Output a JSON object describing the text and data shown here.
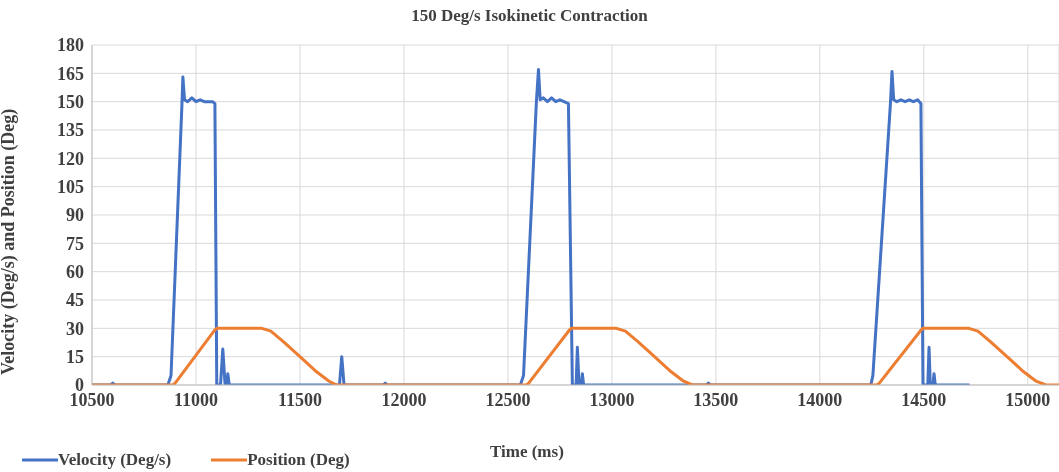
{
  "chart_data": {
    "type": "line",
    "title": "150 Deg/s Isokinetic Contraction",
    "xlabel": "Time (ms)",
    "ylabel": "Velocity (Deg/s) and Position (Deg)",
    "xlim": [
      10500,
      15150
    ],
    "xticks": [
      10500,
      11000,
      11500,
      12000,
      12500,
      13000,
      13500,
      14000,
      14500,
      15000
    ],
    "ylim": [
      0,
      180
    ],
    "yticks": [
      0,
      15,
      30,
      45,
      60,
      75,
      90,
      105,
      120,
      135,
      150,
      165,
      180
    ],
    "grid": true,
    "legend": "bottom left",
    "marker": "none",
    "line_style": "solid",
    "series": [
      {
        "name": "Velocity (Deg/s)",
        "color": "#4472c4",
        "x": [
          10500,
          10590,
          10600,
          10610,
          10865,
          10880,
          10933,
          10937,
          10945,
          10960,
          10980,
          11000,
          11020,
          11040,
          11060,
          11080,
          11091,
          11100,
          11118,
          11129,
          11140,
          11148,
          11153,
          11160,
          11300,
          11690,
          11701,
          11712,
          11900,
          11910,
          11920,
          12560,
          12575,
          12637,
          12647,
          12655,
          12670,
          12690,
          12710,
          12730,
          12750,
          12770,
          12791,
          12810,
          12828,
          12834,
          12842,
          12853,
          12858,
          12864,
          13000,
          13455,
          13464,
          13473,
          14245,
          14255,
          14340,
          14347,
          14355,
          14370,
          14390,
          14410,
          14430,
          14450,
          14470,
          14486,
          14496,
          14519,
          14525,
          14531,
          14544,
          14549,
          14555,
          14720
        ],
        "values": [
          0,
          0,
          1,
          0,
          0,
          5,
          150,
          163,
          151,
          150,
          152,
          150,
          151,
          150,
          150,
          150,
          149,
          0,
          0,
          19,
          0,
          0,
          6,
          0,
          0,
          0,
          15,
          0,
          0,
          1,
          0,
          0,
          5,
          150,
          167,
          151,
          152,
          150,
          152,
          150,
          151,
          150,
          149,
          0,
          0,
          20,
          0,
          0,
          6,
          0,
          0,
          0,
          1,
          0,
          0,
          5,
          150,
          166,
          151,
          150,
          151,
          150,
          151,
          150,
          151,
          149,
          0,
          0,
          20,
          0,
          0,
          6,
          0,
          0
        ]
      },
      {
        "name": "Position (Deg)",
        "color": "#ed7d31",
        "x": [
          10500,
          10889,
          10900,
          11090,
          11100,
          11317,
          11360,
          11420,
          11500,
          11580,
          11640,
          11677,
          12589,
          12600,
          12795,
          12805,
          13022,
          13065,
          13125,
          13205,
          13285,
          13345,
          13387,
          14275,
          14286,
          14486,
          14496,
          14717,
          14760,
          14820,
          14900,
          14980,
          15040,
          15087,
          15150
        ],
        "values": [
          0,
          0,
          1,
          29,
          30,
          30,
          28.5,
          23,
          15,
          7,
          2,
          0,
          0,
          1,
          29,
          30,
          30,
          28.5,
          23,
          15,
          7,
          2,
          0,
          0,
          1,
          29,
          30,
          30,
          28.5,
          23,
          15,
          7,
          2,
          0,
          0
        ]
      }
    ]
  }
}
